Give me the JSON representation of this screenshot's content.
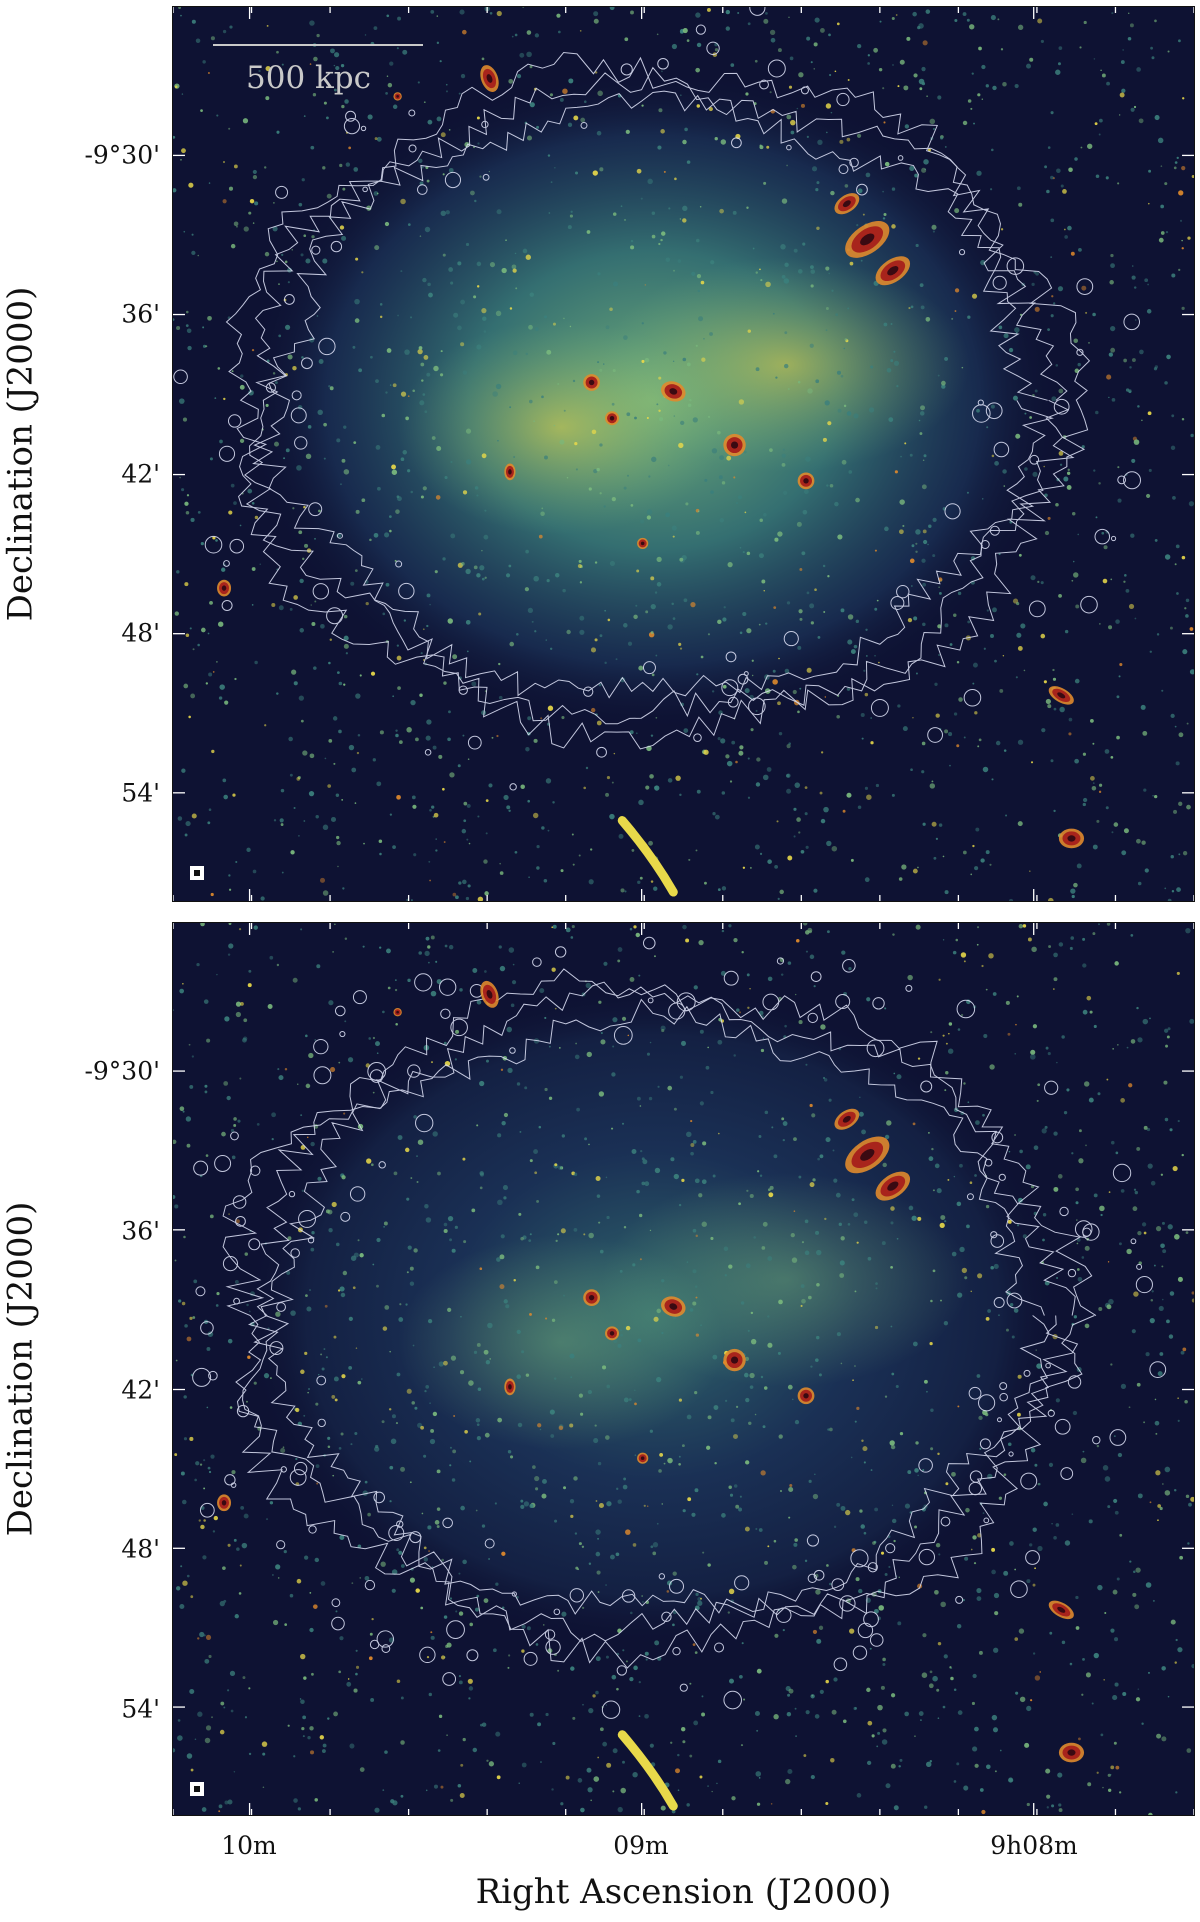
{
  "figure": {
    "x_axis_label": "Right Ascension (J2000)",
    "y_axis_label": "Declination (J2000)",
    "x_ticks": [
      "10m",
      "09m",
      "9h08m"
    ],
    "y_ticks": [
      "-9°30'",
      "36'",
      "42'",
      "48'",
      "54'"
    ],
    "scale_bar_label": "500 kpc",
    "colormap": [
      "#0e1233",
      "#1e3a60",
      "#3b7f7c",
      "#79b87d",
      "#e8d94a",
      "#e08a2c",
      "#a8241c",
      "#3a0a12"
    ],
    "contour_color": "#d7dbf0",
    "panels": [
      {
        "name": "top",
        "diffuse_emission": "bright"
      },
      {
        "name": "bottom",
        "diffuse_emission": "faint"
      }
    ]
  }
}
